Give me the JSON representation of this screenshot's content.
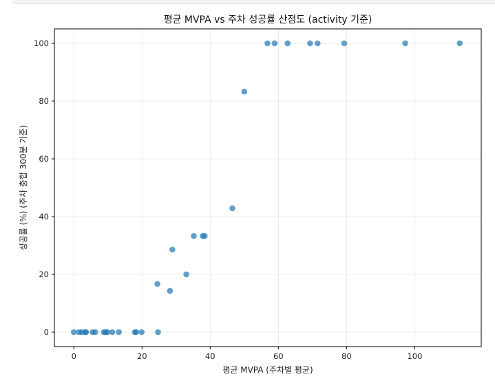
{
  "chart_data": {
    "type": "scatter",
    "title": "평균 MVPA vs 주차 성공률 산점도 (activity 기준)",
    "xlabel": "평균 MVPA (주차별 평균)",
    "ylabel": "성공률 (%) (주차 충합 300분 기준)",
    "xlim": [
      -5.7,
      119.5
    ],
    "ylim": [
      -5,
      105
    ],
    "xticks": [
      0,
      20,
      40,
      60,
      80,
      100
    ],
    "yticks": [
      0,
      20,
      40,
      60,
      80,
      100
    ],
    "grid": true,
    "marker_color": "#1f77b4",
    "points": [
      {
        "x": 0.0,
        "y": 0
      },
      {
        "x": 1.5,
        "y": 0
      },
      {
        "x": 2.3,
        "y": 0
      },
      {
        "x": 3.3,
        "y": 0
      },
      {
        "x": 3.6,
        "y": 0
      },
      {
        "x": 5.5,
        "y": 0
      },
      {
        "x": 6.3,
        "y": 0
      },
      {
        "x": 8.8,
        "y": 0
      },
      {
        "x": 9.3,
        "y": 0
      },
      {
        "x": 9.9,
        "y": 0
      },
      {
        "x": 11.3,
        "y": 0
      },
      {
        "x": 13.2,
        "y": 0
      },
      {
        "x": 17.9,
        "y": 0
      },
      {
        "x": 18.3,
        "y": 0
      },
      {
        "x": 19.9,
        "y": 0
      },
      {
        "x": 24.7,
        "y": 0
      },
      {
        "x": 28.2,
        "y": 14.3
      },
      {
        "x": 24.5,
        "y": 16.7
      },
      {
        "x": 33.0,
        "y": 20.0
      },
      {
        "x": 28.9,
        "y": 28.6
      },
      {
        "x": 35.2,
        "y": 33.3
      },
      {
        "x": 37.8,
        "y": 33.3
      },
      {
        "x": 38.4,
        "y": 33.3
      },
      {
        "x": 46.5,
        "y": 42.9
      },
      {
        "x": 50.0,
        "y": 83.3
      },
      {
        "x": 56.8,
        "y": 100
      },
      {
        "x": 58.9,
        "y": 100
      },
      {
        "x": 62.7,
        "y": 100
      },
      {
        "x": 69.3,
        "y": 100
      },
      {
        "x": 71.5,
        "y": 100
      },
      {
        "x": 79.3,
        "y": 100
      },
      {
        "x": 97.2,
        "y": 100
      },
      {
        "x": 113.2,
        "y": 100
      }
    ]
  }
}
